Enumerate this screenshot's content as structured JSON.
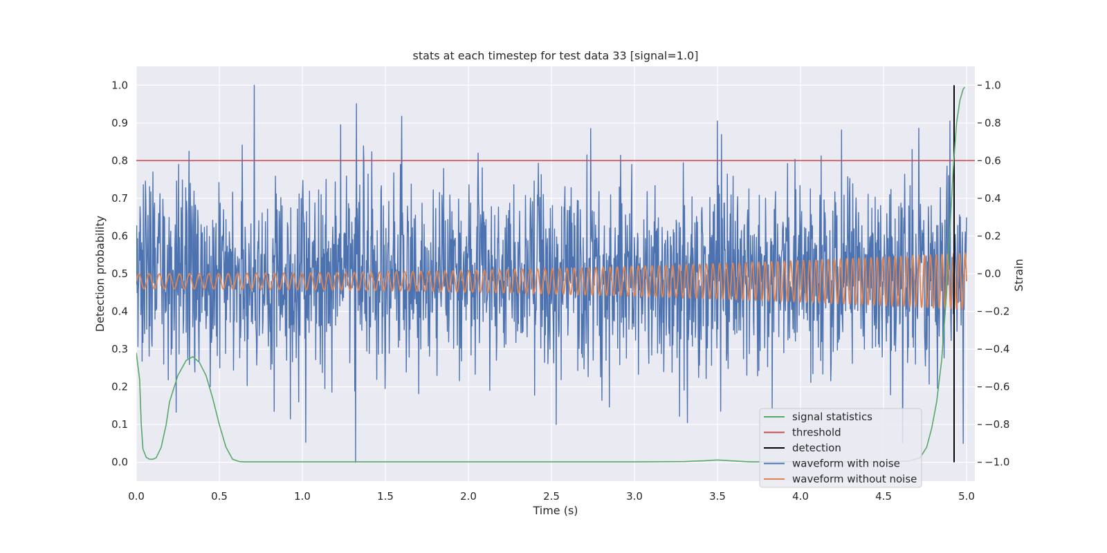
{
  "chart_data": {
    "type": "line",
    "title": "stats at each timestep for test data 33 [signal=1.0]",
    "xlabel": "Time (s)",
    "ylabel": "Detection probability",
    "y2label": "Strain",
    "xlim": [
      0.0,
      5.05
    ],
    "ylim": [
      -0.05,
      1.05
    ],
    "y2lim": [
      -1.1,
      1.1
    ],
    "xticks": [
      "0.0",
      "0.5",
      "1.0",
      "1.5",
      "2.0",
      "2.5",
      "3.0",
      "3.5",
      "4.0",
      "4.5",
      "5.0"
    ],
    "yticks": [
      "0.0",
      "0.1",
      "0.2",
      "0.3",
      "0.4",
      "0.5",
      "0.6",
      "0.7",
      "0.8",
      "0.9",
      "1.0"
    ],
    "y2ticks": [
      "−1.0",
      "−0.8",
      "−0.6",
      "−0.4",
      "−0.2",
      "0.0",
      "0.2",
      "0.4",
      "0.6",
      "0.8",
      "1.0"
    ],
    "grid": true,
    "legend_position": "lower-right",
    "background": "#eaeaf2",
    "series": [
      {
        "name": "signal statistics",
        "axis": "left",
        "color": "#55a868",
        "x": [
          0.0,
          0.02,
          0.03,
          0.04,
          0.06,
          0.08,
          0.1,
          0.12,
          0.15,
          0.18,
          0.2,
          0.25,
          0.3,
          0.34,
          0.38,
          0.42,
          0.46,
          0.5,
          0.54,
          0.58,
          0.62,
          0.65,
          0.7,
          1.0,
          2.0,
          3.0,
          3.3,
          3.42,
          3.5,
          3.58,
          3.7,
          4.0,
          4.5,
          4.65,
          4.72,
          4.76,
          4.79,
          4.82,
          4.85,
          4.88,
          4.9,
          4.92,
          4.94,
          4.96,
          4.98,
          4.99
        ],
        "values": [
          0.29,
          0.22,
          0.1,
          0.035,
          0.013,
          0.008,
          0.008,
          0.012,
          0.04,
          0.1,
          0.16,
          0.23,
          0.27,
          0.28,
          0.265,
          0.23,
          0.17,
          0.1,
          0.04,
          0.008,
          0.002,
          0.001,
          0.001,
          0.001,
          0.001,
          0.001,
          0.002,
          0.004,
          0.006,
          0.004,
          0.001,
          0.001,
          0.001,
          0.003,
          0.012,
          0.04,
          0.09,
          0.16,
          0.27,
          0.45,
          0.62,
          0.78,
          0.9,
          0.96,
          0.99,
          0.995
        ]
      },
      {
        "name": "threshold",
        "axis": "left",
        "color": "#c44e52",
        "x": [
          0.0,
          5.05
        ],
        "values": [
          0.8,
          0.8
        ]
      },
      {
        "name": "detection",
        "axis": "left",
        "color": "#000000",
        "x": [
          4.925,
          4.925
        ],
        "values": [
          0.0,
          1.0
        ]
      },
      {
        "name": "waveform with noise",
        "axis": "right",
        "color": "#4c72b0",
        "noise": true,
        "x_range": [
          0.0,
          5.0
        ],
        "amplitude_center": 0.0,
        "amplitude_spread": 0.25,
        "peaks": [
          {
            "x": 0.71,
            "y": 1.0
          },
          {
            "x": 1.32,
            "y": -1.0
          },
          {
            "x": 1.23,
            "y": 0.79
          },
          {
            "x": 3.5,
            "y": 0.81
          },
          {
            "x": 2.53,
            "y": -0.8
          },
          {
            "x": 0.83,
            "y": -0.73
          },
          {
            "x": 3.32,
            "y": -0.79
          },
          {
            "x": 4.9,
            "y": 0.81
          },
          {
            "x": 4.98,
            "y": -0.9
          }
        ]
      },
      {
        "name": "waveform without noise",
        "axis": "right",
        "color": "#dd8452",
        "x_range": [
          0.0,
          5.0
        ],
        "amplitude_start": 0.04,
        "amplitude_end": 0.15,
        "cycles_start": 16.0,
        "cycles_end": 29.0,
        "offset": -0.04
      }
    ]
  }
}
